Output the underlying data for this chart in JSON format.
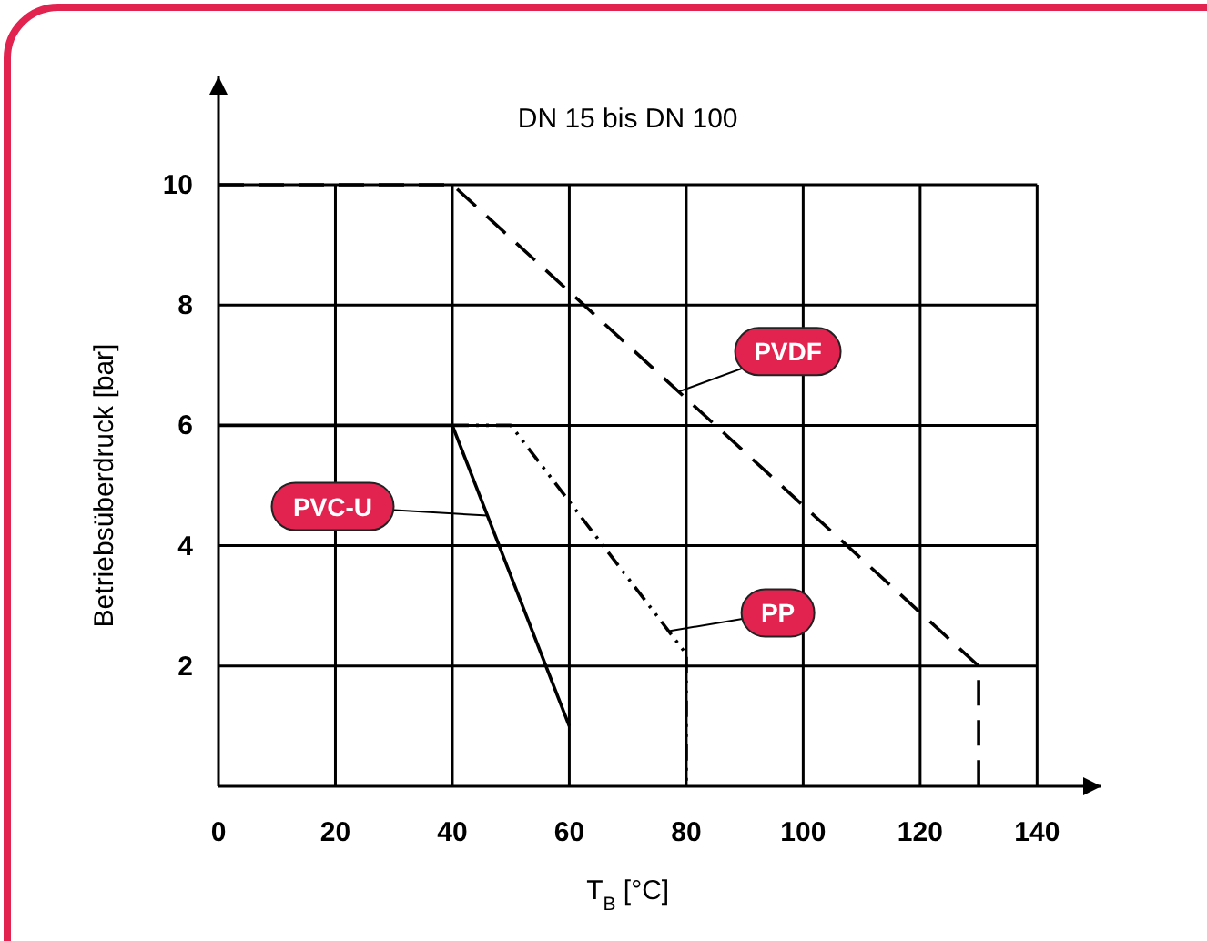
{
  "chart_data": {
    "type": "line",
    "title": "DN 15 bis DN 100",
    "xlabel": "T$_{B}$ [°C]",
    "ylabel": "Betriebsüberdruck [bar]",
    "xlim": [
      0,
      151
    ],
    "ylim": [
      0,
      11.8
    ],
    "xticks": [
      0,
      20,
      40,
      60,
      80,
      100,
      120,
      140
    ],
    "yticks": [
      2,
      4,
      6,
      8,
      10
    ],
    "grid": true,
    "marker": "none",
    "series": [
      {
        "name": "PVDF",
        "color": "#000000",
        "line_style": "dashed",
        "x": [
          0,
          40,
          130,
          130
        ],
        "values": [
          10,
          10,
          2,
          0
        ]
      },
      {
        "name": "PVC-U",
        "color": "#000000",
        "line_style": "solid",
        "x": [
          0,
          40,
          60
        ],
        "values": [
          6,
          6,
          1
        ]
      },
      {
        "name": "PP",
        "color": "#000000",
        "line_style": "dotted",
        "x": [
          40,
          50,
          80,
          80
        ],
        "values": [
          6,
          6,
          2.2,
          0
        ]
      }
    ]
  }
}
